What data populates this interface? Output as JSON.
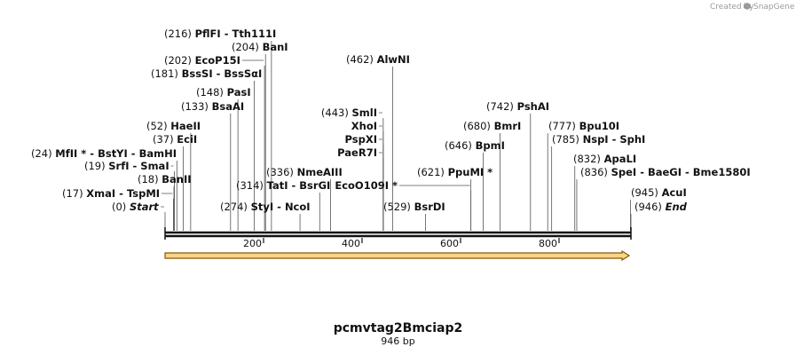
{
  "credit": {
    "text": "Created by",
    "brand": "SnapGene"
  },
  "sequence": {
    "name": "pcmvtag2Bmciap2",
    "length_label": "946 bp",
    "length": 946
  },
  "ruler": {
    "ticks": [
      "200",
      "400",
      "600",
      "800"
    ]
  },
  "feature": {
    "start": 0,
    "end": 946,
    "color": "#f7d58a",
    "stroke": "#8a5a00"
  },
  "sites": [
    {
      "position": 216,
      "pos_label": "(216)",
      "enzymes": [
        "PflFI",
        "Tth111I"
      ]
    },
    {
      "position": 204,
      "pos_label": "(204)",
      "enzymes": [
        "BanI"
      ]
    },
    {
      "position": 202,
      "pos_label": "(202)",
      "enzymes": [
        "EcoP15I"
      ]
    },
    {
      "position": 181,
      "pos_label": "(181)",
      "enzymes": [
        "BssSI",
        "BssSαI"
      ]
    },
    {
      "position": 148,
      "pos_label": "(148)",
      "enzymes": [
        "PasI"
      ]
    },
    {
      "position": 133,
      "pos_label": "(133)",
      "enzymes": [
        "BsaAI"
      ]
    },
    {
      "position": 52,
      "pos_label": "(52)",
      "enzymes": [
        "HaeII"
      ]
    },
    {
      "position": 37,
      "pos_label": "(37)",
      "enzymes": [
        "EciI"
      ]
    },
    {
      "position": 24,
      "pos_label": "(24)",
      "enzymes": [
        "MfII *",
        "BstYI",
        "BamHI"
      ]
    },
    {
      "position": 19,
      "pos_label": "(19)",
      "enzymes": [
        "SrfI",
        "SmaI"
      ]
    },
    {
      "position": 18,
      "pos_label": "(18)",
      "enzymes": [
        "BanII"
      ]
    },
    {
      "position": 17,
      "pos_label": "(17)",
      "enzymes": [
        "XmaI",
        "TspMI"
      ]
    },
    {
      "position": 0,
      "pos_label": "(0)",
      "enzymes": [
        "Start"
      ],
      "italic": true
    },
    {
      "position": 336,
      "pos_label": "(336)",
      "enzymes": [
        "NmeAIII"
      ]
    },
    {
      "position": 314,
      "pos_label": "(314)",
      "enzymes": [
        "TatI",
        "BsrGI"
      ]
    },
    {
      "position": 274,
      "pos_label": "(274)",
      "enzymes": [
        "StyI",
        "NcoI"
      ]
    },
    {
      "position": 462,
      "pos_label": "(462)",
      "enzymes": [
        "AlwNI"
      ]
    },
    {
      "position": 443,
      "pos_label": "(443)",
      "enzymes": [
        "SmlI"
      ]
    },
    {
      "position": 443,
      "pos_label": "",
      "enzymes": [
        "XhoI"
      ]
    },
    {
      "position": 443,
      "pos_label": "",
      "enzymes": [
        "PspXI"
      ]
    },
    {
      "position": 443,
      "pos_label": "",
      "enzymes": [
        "PaeR7I"
      ]
    },
    {
      "position": 621,
      "pos_label": "(621)",
      "enzymes": [
        "PpuMI *"
      ]
    },
    {
      "position": 621,
      "pos_label": "",
      "enzymes": [
        "EcoO109I *"
      ]
    },
    {
      "position": 529,
      "pos_label": "(529)",
      "enzymes": [
        "BsrDI"
      ]
    },
    {
      "position": 742,
      "pos_label": "(742)",
      "enzymes": [
        "PshAI"
      ]
    },
    {
      "position": 680,
      "pos_label": "(680)",
      "enzymes": [
        "BmrI"
      ]
    },
    {
      "position": 646,
      "pos_label": "(646)",
      "enzymes": [
        "BpmI"
      ]
    },
    {
      "position": 777,
      "pos_label": "(777)",
      "enzymes": [
        "Bpu10I"
      ]
    },
    {
      "position": 785,
      "pos_label": "(785)",
      "enzymes": [
        "NspI",
        "SphI"
      ]
    },
    {
      "position": 832,
      "pos_label": "(832)",
      "enzymes": [
        "ApaLI"
      ]
    },
    {
      "position": 836,
      "pos_label": "(836)",
      "enzymes": [
        "SpeI",
        "BaeGI",
        "Bme1580I"
      ]
    },
    {
      "position": 945,
      "pos_label": "(945)",
      "enzymes": [
        "AcuI"
      ]
    },
    {
      "position": 946,
      "pos_label": "(946)",
      "enzymes": [
        "End"
      ],
      "italic": true
    }
  ]
}
